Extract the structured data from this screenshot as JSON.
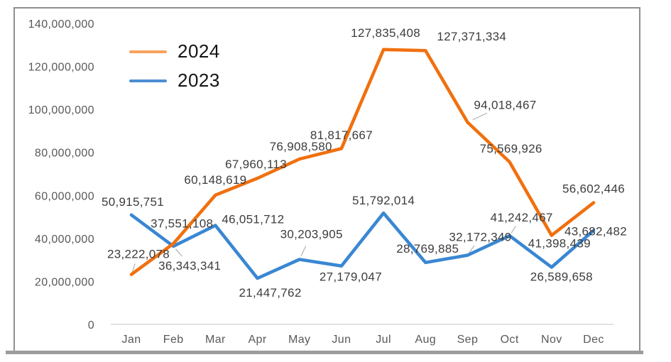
{
  "chart_data": {
    "type": "line",
    "title": "",
    "categories": [
      "Jan",
      "Feb",
      "Mar",
      "Apr",
      "May",
      "Jun",
      "Jul",
      "Aug",
      "Sep",
      "Oct",
      "Nov",
      "Dec"
    ],
    "y_ticks": [
      0,
      20000000,
      40000000,
      60000000,
      80000000,
      100000000,
      120000000,
      140000000
    ],
    "y_tick_labels": [
      "0",
      "20,000,000",
      "40,000,000",
      "60,000,000",
      "80,000,000",
      "100,000,000",
      "120,000,000",
      "140,000,000"
    ],
    "ylim": [
      0,
      140000000
    ],
    "grid": "off",
    "legend_position": "top-left",
    "data_labels": "on",
    "label_format": "thousands-comma",
    "series": [
      {
        "name": "2024",
        "color": "#F0700F",
        "legend_swatch_color": "#F8A25E",
        "values": [
          23222078,
          37551108,
          60148619,
          67960113,
          76908580,
          81817667,
          127835408,
          127371334,
          94018467,
          75569926,
          41398439,
          56602446
        ],
        "label_offsets": [
          [
            10,
            -29
          ],
          [
            12,
            -29
          ],
          [
            0,
            -22
          ],
          [
            -2,
            -20
          ],
          [
            2,
            -18
          ],
          [
            0,
            -19
          ],
          [
            3,
            -24
          ],
          [
            65,
            -20
          ],
          [
            53,
            -25
          ],
          [
            2,
            -19
          ],
          [
            11,
            11
          ],
          [
            0,
            -20
          ]
        ],
        "leader_indices": [
          0,
          8
        ]
      },
      {
        "name": "2023",
        "color": "#3A87D3",
        "legend_swatch_color": "#4C8ED2",
        "values": [
          50915751,
          36343341,
          46051712,
          21447762,
          30203905,
          27179047,
          51792014,
          28769885,
          32172349,
          41242467,
          26589658,
          43682482
        ],
        "label_offsets": [
          [
            2,
            -19
          ],
          [
            23,
            27
          ],
          [
            53,
            -9
          ],
          [
            18,
            20
          ],
          [
            17,
            -36
          ],
          [
            13,
            15
          ],
          [
            0,
            -18
          ],
          [
            3,
            -20
          ],
          [
            18,
            -26
          ],
          [
            17,
            -26
          ],
          [
            14,
            13
          ],
          [
            3,
            1
          ]
        ],
        "leader_indices": [
          1,
          4,
          8,
          9
        ]
      }
    ]
  },
  "colors": {
    "frame_border": "#8f8f8f",
    "axis_line": "#d9d9d9",
    "axis_text": "#595959",
    "data_label_text": "#3c3c3c",
    "leader_line": "#b0b0b0",
    "background": "#ffffff"
  }
}
